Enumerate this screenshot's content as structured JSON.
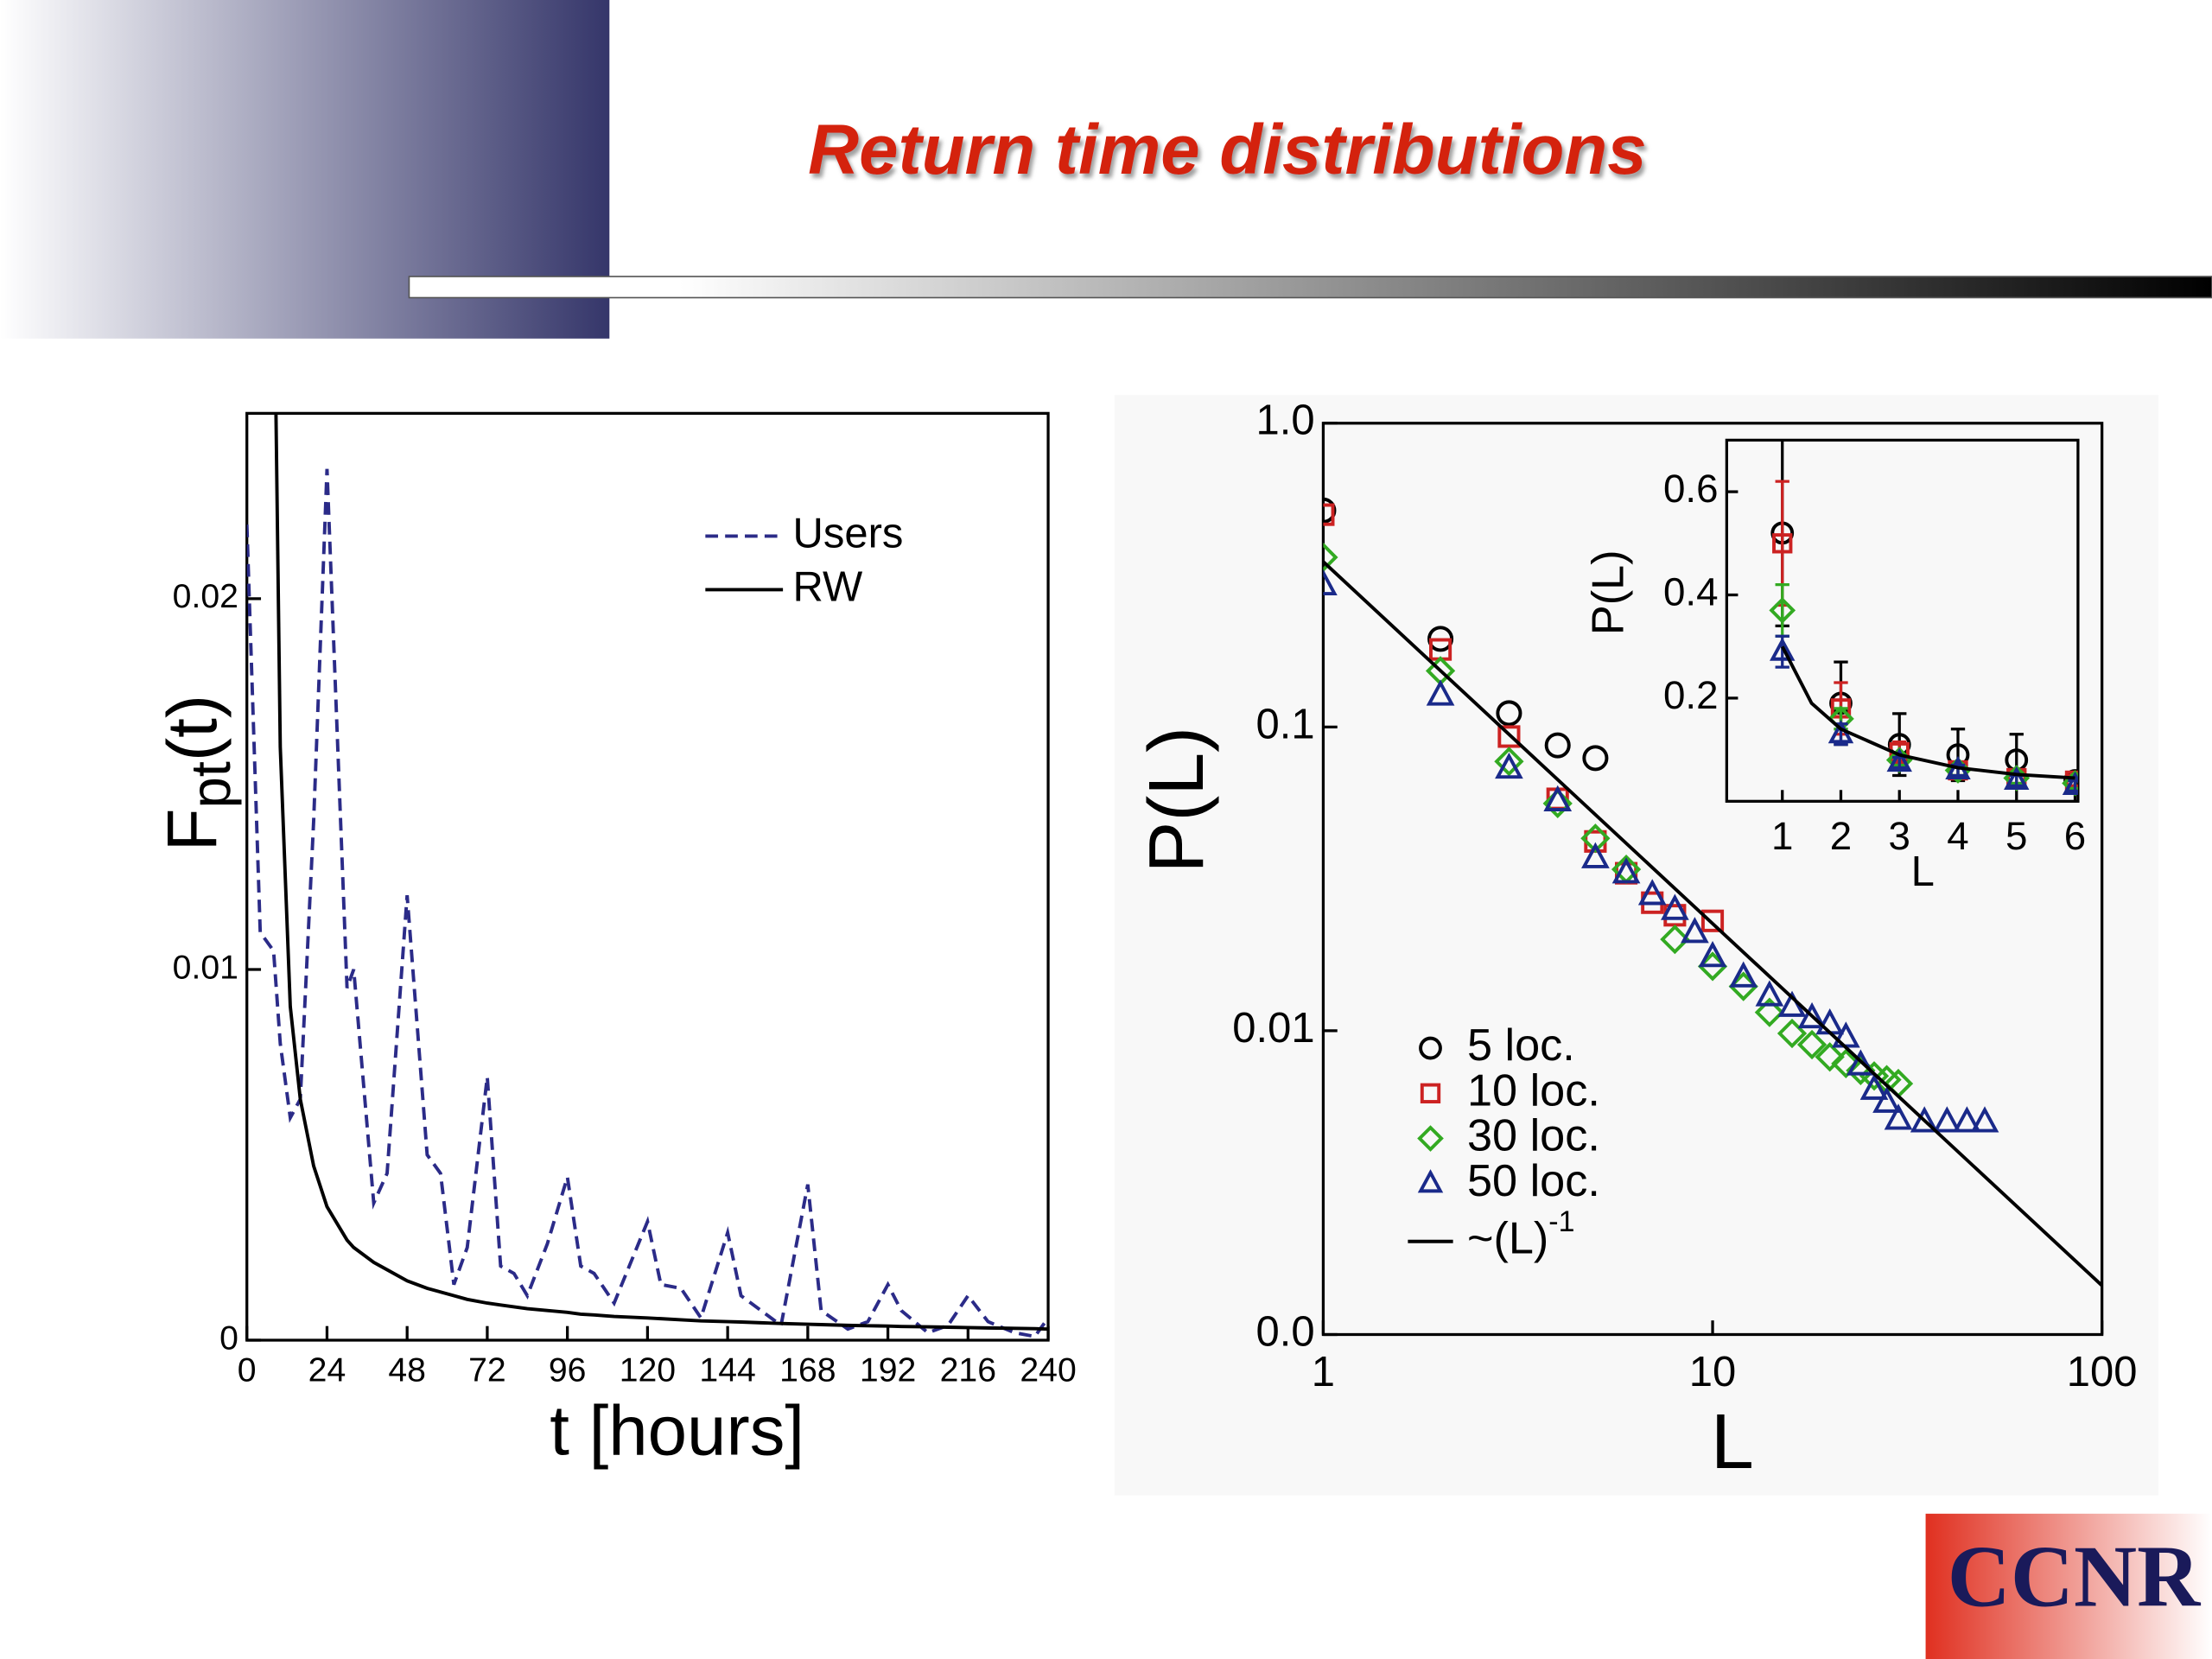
{
  "title": "Return time distributions",
  "logo": "CCNR",
  "chart_data": [
    {
      "type": "line",
      "xlabel": "t [hours]",
      "ylabel": {
        "main": "F",
        "sub": "pt",
        "tail": "(t)"
      },
      "xlim": [
        0,
        240
      ],
      "ylim": [
        0,
        0.025
      ],
      "xticks": [
        0,
        24,
        48,
        72,
        96,
        120,
        144,
        168,
        192,
        216,
        240
      ],
      "yticks": [
        0,
        0.01,
        0.02
      ],
      "legend": "upper right",
      "x": [
        0,
        4,
        8,
        10,
        13,
        16,
        20,
        24,
        30,
        32,
        38,
        42,
        48,
        54,
        58,
        62,
        66,
        72,
        76,
        80,
        84,
        90,
        96,
        100,
        104,
        110,
        120,
        124,
        130,
        136,
        144,
        148,
        154,
        160,
        168,
        172,
        180,
        186,
        192,
        196,
        204,
        210,
        216,
        222,
        230,
        236,
        240
      ],
      "series": [
        {
          "name": "Users",
          "color": "#2b2b88",
          "style": "dashed",
          "values": [
            0.022,
            0.011,
            0.0105,
            0.008,
            0.006,
            0.0065,
            0.014,
            0.0235,
            0.0095,
            0.01,
            0.0037,
            0.0045,
            0.012,
            0.005,
            0.0045,
            0.0015,
            0.0025,
            0.0071,
            0.002,
            0.0018,
            0.0012,
            0.0026,
            0.0044,
            0.002,
            0.0018,
            0.001,
            0.0032,
            0.0015,
            0.0014,
            0.0006,
            0.0029,
            0.0012,
            0.0008,
            0.0004,
            0.0042,
            0.0008,
            0.0003,
            0.0005,
            0.0015,
            0.0008,
            0.0002,
            0.0004,
            0.0012,
            0.0005,
            0.0002,
            0.0001,
            0.0006
          ]
        },
        {
          "name": "RW",
          "color": "#000000",
          "style": "solid",
          "values": [
            null,
            null,
            0.03,
            0.016,
            0.009,
            0.0065,
            0.0047,
            0.0036,
            0.0027,
            0.0025,
            0.0021,
            0.0019,
            0.0016,
            0.0014,
            0.0013,
            0.0012,
            0.0011,
            0.001,
            0.00095,
            0.0009,
            0.00085,
            0.0008,
            0.00075,
            0.0007,
            0.00068,
            0.00064,
            0.0006,
            0.00058,
            0.00055,
            0.00052,
            0.0005,
            0.00049,
            0.00047,
            0.00045,
            0.00043,
            0.00042,
            0.0004,
            0.00039,
            0.00038,
            0.00037,
            0.00036,
            0.00035,
            0.00034,
            0.00033,
            0.00032,
            0.00031,
            0.0003
          ]
        }
      ]
    },
    {
      "type": "scatter",
      "xlabel": "L",
      "ylabel": "P(L)",
      "xscale": "log",
      "yscale": "log",
      "xlim": [
        1,
        100
      ],
      "ylim": [
        0.001,
        1
      ],
      "xticks": [
        1,
        10,
        100
      ],
      "yticks": [
        {
          "value": 1,
          "label": "1.0"
        },
        0.1,
        0.01,
        {
          "value": 0.001,
          "label": "0.0"
        }
      ],
      "legend": "lower left",
      "series": [
        {
          "name": "5 loc.",
          "color": "#000000",
          "marker": "circle",
          "x": [
            1,
            2,
            3,
            4,
            5
          ],
          "values": [
            0.516,
            0.195,
            0.111,
            0.087,
            0.079
          ]
        },
        {
          "name": "10 loc.",
          "color": "#cc2222",
          "marker": "square",
          "x": [
            1,
            2,
            3,
            4,
            5,
            6,
            7,
            8,
            10
          ],
          "values": [
            0.5,
            0.18,
            0.093,
            0.058,
            0.042,
            0.033,
            0.0264,
            0.024,
            0.023
          ]
        },
        {
          "name": "30 loc.",
          "color": "#33aa22",
          "marker": "diamond",
          "x": [
            1,
            2,
            3,
            4,
            5,
            6,
            8,
            10,
            12,
            14,
            16,
            18,
            20,
            22,
            24,
            26,
            28,
            30
          ],
          "values": [
            0.362,
            0.153,
            0.077,
            0.056,
            0.043,
            0.034,
            0.02,
            0.0163,
            0.014,
            0.0115,
            0.0098,
            0.009,
            0.0082,
            0.0078,
            0.0074,
            0.0071,
            0.0069,
            0.0067
          ]
        },
        {
          "name": "50 loc.",
          "color": "#1a2a8a",
          "marker": "triangle",
          "x": [
            1,
            2,
            3,
            4,
            5,
            6,
            7,
            8,
            9,
            10,
            12,
            14,
            16,
            18,
            20,
            22,
            24,
            26,
            28,
            30,
            35,
            40,
            45,
            50
          ],
          "values": [
            0.293,
            0.127,
            0.073,
            0.057,
            0.037,
            0.033,
            0.028,
            0.025,
            0.021,
            0.0175,
            0.015,
            0.013,
            0.012,
            0.011,
            0.0105,
            0.0095,
            0.0077,
            0.0064,
            0.0058,
            0.0051,
            0.005,
            0.005,
            0.005,
            0.005
          ]
        },
        {
          "name": "~(L)",
          "name_sup": "-1",
          "color": "#000000",
          "style": "solid",
          "x": [
            1,
            100
          ],
          "values": [
            0.35,
            0.00145
          ]
        }
      ]
    },
    {
      "type": "scatter",
      "xlabel": "L",
      "ylabel": "P(L)",
      "xlim": [
        0.05,
        6.05
      ],
      "ylim": [
        0,
        0.7
      ],
      "xticks": [
        1,
        2,
        3,
        4,
        5,
        6
      ],
      "yticks": [
        0.2,
        0.4,
        0.6
      ],
      "series": [
        {
          "color": "#000000",
          "marker": "circle",
          "x": [
            1,
            2,
            3,
            4,
            5,
            6
          ],
          "values": [
            0.52,
            0.19,
            0.11,
            0.09,
            0.08,
            0.04
          ],
          "errors": [
            0.18,
            0.08,
            0.06,
            0.05,
            0.05,
            0.01
          ]
        },
        {
          "color": "#cc2222",
          "marker": "square",
          "x": [
            1,
            2,
            3,
            4,
            5,
            6
          ],
          "values": [
            0.5,
            0.18,
            0.095,
            0.06,
            0.045,
            0.04
          ],
          "errors": [
            0.12,
            0.05,
            0.02,
            0.01,
            0.01,
            0.01
          ]
        },
        {
          "color": "#33aa22",
          "marker": "diamond",
          "x": [
            1,
            2,
            3,
            4,
            5,
            6
          ],
          "values": [
            0.37,
            0.16,
            0.08,
            0.06,
            0.045,
            0.035
          ],
          "errors": [
            0.05,
            0.02,
            0.01,
            0.01,
            0.01,
            0.01
          ]
        },
        {
          "color": "#1a2a8a",
          "marker": "triangle",
          "x": [
            1,
            2,
            3,
            4,
            5,
            6
          ],
          "values": [
            0.29,
            0.13,
            0.075,
            0.06,
            0.04,
            0.03
          ],
          "errors": [
            0.03,
            0.02,
            0.01,
            0.01,
            0.01,
            0.01
          ]
        },
        {
          "color": "#000000",
          "style": "solid",
          "x": [
            1,
            1.5,
            2,
            3,
            4,
            5,
            6
          ],
          "values": [
            0.3,
            0.19,
            0.14,
            0.09,
            0.065,
            0.052,
            0.045
          ]
        }
      ]
    }
  ]
}
